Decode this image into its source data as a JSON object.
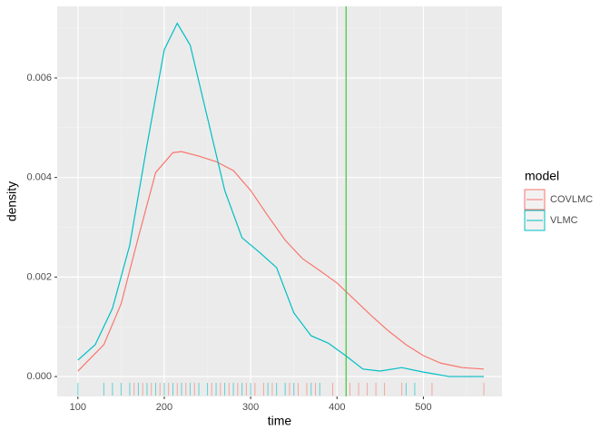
{
  "chart_data": {
    "type": "density",
    "xlabel": "time",
    "ylabel": "density",
    "legend_title": "model",
    "xlim": [
      76,
      591
    ],
    "ylim": [
      -0.0004,
      0.00744
    ],
    "xticks": [
      100,
      200,
      300,
      400,
      500
    ],
    "xminor": [
      150,
      250,
      350,
      450,
      550
    ],
    "yticks": [
      {
        "value": 0,
        "label": "0.000"
      },
      {
        "value": 0.002,
        "label": "0.002"
      },
      {
        "value": 0.004,
        "label": "0.004"
      },
      {
        "value": 0.006,
        "label": "0.006"
      }
    ],
    "yminor": [
      0.001,
      0.003,
      0.005,
      0.007
    ],
    "grid": true,
    "vline": {
      "x": 410.5,
      "color": "#39c739"
    },
    "series": [
      {
        "name": "COVLMC",
        "color": "#F8766D",
        "x": [
          100,
          130,
          150,
          170,
          190,
          210,
          220,
          240,
          260,
          280,
          300,
          320,
          340,
          360,
          380,
          400,
          420,
          440,
          460,
          480,
          500,
          520,
          545,
          570
        ],
        "values": [
          0.00011,
          0.00064,
          0.00146,
          0.0028,
          0.0041,
          0.0045,
          0.00452,
          0.00443,
          0.00432,
          0.00414,
          0.00374,
          0.00323,
          0.00274,
          0.00237,
          0.00213,
          0.00188,
          0.00155,
          0.00122,
          0.00091,
          0.00064,
          0.00042,
          0.00027,
          0.00018,
          0.00015
        ],
        "rug": [
          165,
          175,
          185,
          195,
          205,
          215,
          225,
          235,
          255,
          265,
          275,
          285,
          295,
          305,
          315,
          325,
          345,
          355,
          365,
          375,
          395,
          415,
          425,
          435,
          445,
          455,
          475,
          510,
          570
        ]
      },
      {
        "name": "VLMC",
        "color": "#00BFC4",
        "x": [
          100,
          120,
          140,
          160,
          180,
          200,
          215,
          230,
          250,
          270,
          290,
          310,
          330,
          350,
          370,
          390,
          410,
          430,
          450,
          475,
          500,
          530,
          570
        ],
        "values": [
          0.00033,
          0.00064,
          0.00137,
          0.00264,
          0.00465,
          0.00657,
          0.0071,
          0.00666,
          0.0052,
          0.00374,
          0.00279,
          0.0025,
          0.00219,
          0.00128,
          0.00082,
          0.00067,
          0.00042,
          0.00015,
          0.00011,
          0.00018,
          9e-05,
          0.0,
          0.0
        ],
        "rug": [
          100,
          130,
          140,
          150,
          160,
          170,
          180,
          190,
          200,
          210,
          220,
          230,
          240,
          250,
          260,
          270,
          280,
          290,
          300,
          320,
          330,
          340,
          350,
          370,
          380,
          480,
          490
        ]
      }
    ]
  }
}
